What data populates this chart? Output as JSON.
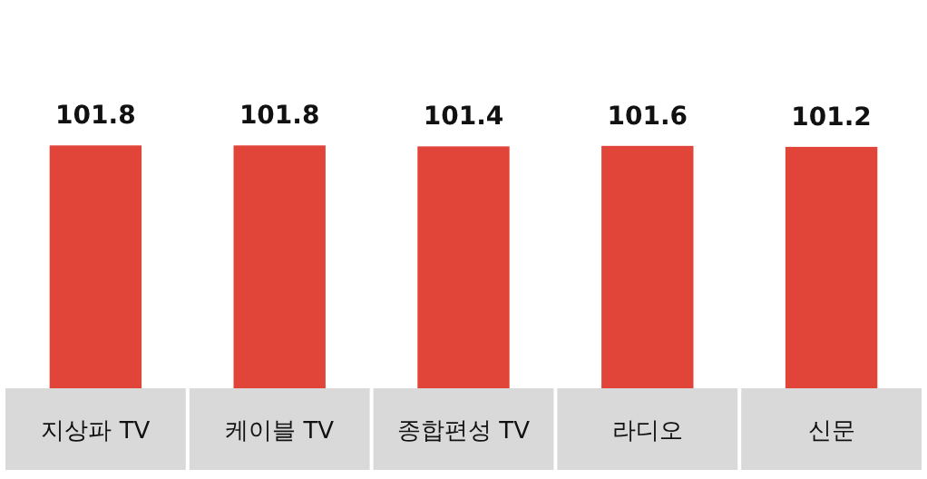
{
  "chart_data": {
    "type": "bar",
    "categories": [
      "지상파 TV",
      "케이블 TV",
      "종합편성 TV",
      "라디오",
      "신문"
    ],
    "values": [
      101.8,
      101.8,
      101.4,
      101.6,
      101.2
    ],
    "color": "#e1453a",
    "data_labels": true
  }
}
